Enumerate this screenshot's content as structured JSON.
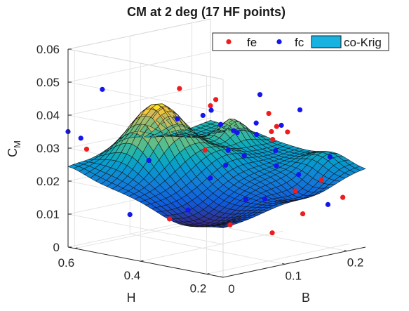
{
  "chart_data": {
    "type": "surface3d",
    "title": "CM at 2 deg (17 HF points)",
    "xlabel": "B",
    "ylabel": "H",
    "zlabel": "C",
    "zlabel_sub": "M",
    "xlim": [
      0,
      0.23
    ],
    "ylim": [
      0.15,
      0.62
    ],
    "zlim": [
      0,
      0.06
    ],
    "xticks": [
      "0",
      "0.1",
      "0.2"
    ],
    "yticks": [
      "0.6",
      "0.4",
      "0.2"
    ],
    "zticks": [
      "0",
      "0.01",
      "0.02",
      "0.03",
      "0.04",
      "0.05",
      "0.06"
    ],
    "grid": true,
    "legend_position": "top-right",
    "legend": [
      {
        "name": "fe",
        "marker": "dot",
        "color": "#ee1c1c"
      },
      {
        "name": "fc",
        "marker": "dot",
        "color": "#1515ee"
      },
      {
        "name": "co-Krig",
        "marker": "patch",
        "color": "#17b2e0"
      }
    ],
    "series": [
      {
        "name": "fe",
        "color": "#ee1c1c",
        "points": [
          {
            "x": 0.03,
            "y": 0.62,
            "z": 0.0285
          },
          {
            "x": 0.02,
            "y": 0.35,
            "z": 0.013
          },
          {
            "x": 0.07,
            "y": 0.26,
            "z": 0.011
          },
          {
            "x": 0.09,
            "y": 0.17,
            "z": 0.0095
          },
          {
            "x": 0.15,
            "y": 0.19,
            "z": 0.0125
          },
          {
            "x": 0.1,
            "y": 0.47,
            "z": 0.047
          },
          {
            "x": 0.12,
            "y": 0.43,
            "z": 0.0283
          },
          {
            "x": 0.175,
            "y": 0.34,
            "z": 0.039
          },
          {
            "x": 0.16,
            "y": 0.3,
            "z": 0.0325
          },
          {
            "x": 0.19,
            "y": 0.36,
            "z": 0.0325
          },
          {
            "x": 0.17,
            "y": 0.25,
            "z": 0.0175
          },
          {
            "x": 0.22,
            "y": 0.2,
            "z": 0.0145
          },
          {
            "x": 0.18,
            "y": 0.19,
            "z": 0.0215
          },
          {
            "x": 0.225,
            "y": 0.41,
            "z": 0.0317
          },
          {
            "x": 0.23,
            "y": 0.62,
            "z": 0.0337
          },
          {
            "x": 0.18,
            "y": 0.51,
            "z": 0.0397
          },
          {
            "x": 0.2,
            "y": 0.33,
            "z": 0.0326
          }
        ]
      },
      {
        "name": "fc",
        "color": "#1515ee",
        "points": [
          {
            "x": 0.0,
            "y": 0.62,
            "z": 0.035
          },
          {
            "x": 0.01,
            "y": 0.6,
            "z": 0.033
          },
          {
            "x": 0.04,
            "y": 0.45,
            "z": 0.028
          },
          {
            "x": 0.05,
            "y": 0.61,
            "z": 0.046
          },
          {
            "x": 0.02,
            "y": 0.47,
            "z": 0.012
          },
          {
            "x": 0.05,
            "y": 0.35,
            "z": 0.0145
          },
          {
            "x": 0.07,
            "y": 0.42,
            "z": 0.04
          },
          {
            "x": 0.09,
            "y": 0.38,
            "z": 0.041
          },
          {
            "x": 0.07,
            "y": 0.32,
            "z": 0.024
          },
          {
            "x": 0.09,
            "y": 0.25,
            "z": 0.018
          },
          {
            "x": 0.1,
            "y": 0.33,
            "z": 0.0265
          },
          {
            "x": 0.12,
            "y": 0.36,
            "z": 0.0296
          },
          {
            "x": 0.13,
            "y": 0.33,
            "z": 0.0282
          },
          {
            "x": 0.11,
            "y": 0.23,
            "z": 0.0178
          },
          {
            "x": 0.14,
            "y": 0.37,
            "z": 0.034
          },
          {
            "x": 0.15,
            "y": 0.33,
            "z": 0.0338
          },
          {
            "x": 0.16,
            "y": 0.35,
            "z": 0.0365
          },
          {
            "x": 0.15,
            "y": 0.27,
            "z": 0.0255
          },
          {
            "x": 0.17,
            "y": 0.31,
            "z": 0.0285
          },
          {
            "x": 0.17,
            "y": 0.24,
            "z": 0.0226
          },
          {
            "x": 0.18,
            "y": 0.17,
            "z": 0.0145
          },
          {
            "x": 0.13,
            "y": 0.43,
            "z": 0.04
          },
          {
            "x": 0.14,
            "y": 0.42,
            "z": 0.0355
          },
          {
            "x": 0.19,
            "y": 0.33,
            "z": 0.035
          },
          {
            "x": 0.22,
            "y": 0.33,
            "z": 0.0385
          },
          {
            "x": 0.23,
            "y": 0.47,
            "z": 0.04
          },
          {
            "x": 0.21,
            "y": 0.22,
            "z": 0.0268
          },
          {
            "x": 0.15,
            "y": 0.4,
            "z": 0.0336
          }
        ]
      }
    ]
  }
}
